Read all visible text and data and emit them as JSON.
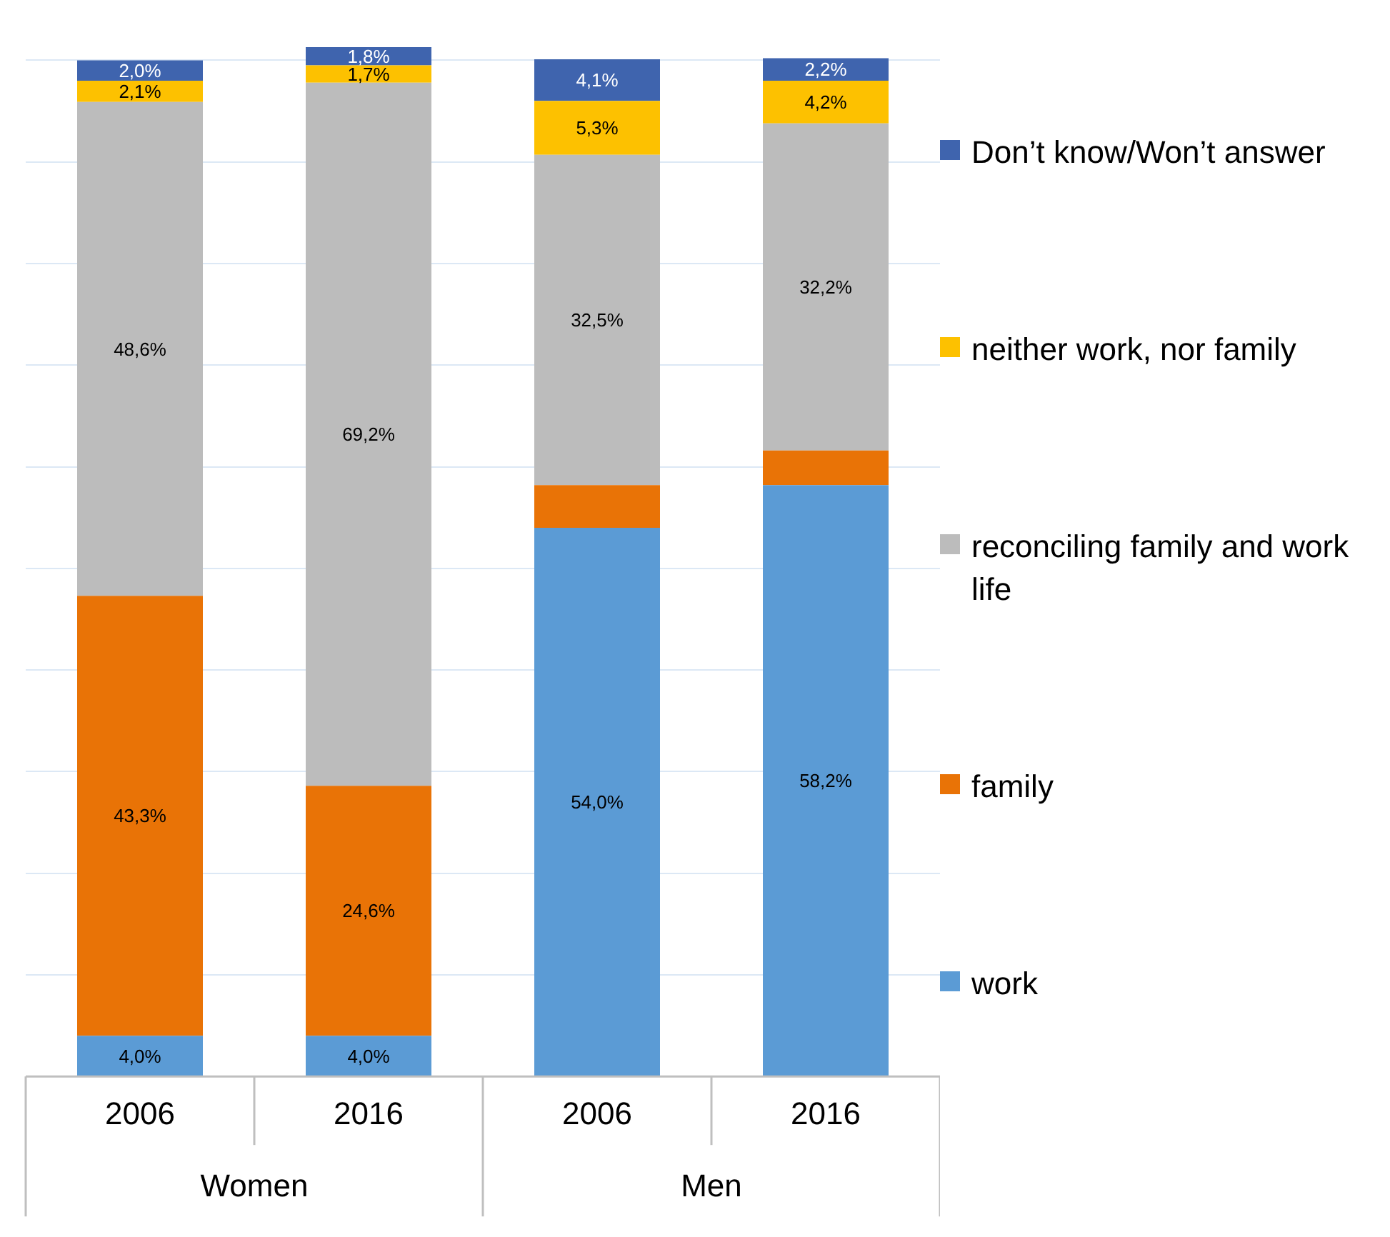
{
  "chart_data": {
    "type": "bar",
    "stacked": true,
    "categories": [
      "2006",
      "2016",
      "2006",
      "2016"
    ],
    "annotations": [
      "Women",
      "Men"
    ],
    "series": [
      {
        "name": "work",
        "color": "#5b9bd5",
        "values": [
          4.0,
          4.0,
          54.0,
          58.2
        ],
        "value_labels": [
          "4,0%",
          "4,0%",
          "54,0%",
          "58,2%"
        ]
      },
      {
        "name": "family",
        "color": "#e97306",
        "values": [
          43.3,
          24.6,
          4.2,
          3.4
        ],
        "value_labels": [
          "43,3%",
          "24,6%",
          null,
          null
        ]
      },
      {
        "name": "reconciling family and work life",
        "color": "#bcbcbc",
        "values": [
          48.6,
          69.2,
          32.5,
          32.2
        ],
        "value_labels": [
          "48,6%",
          "69,2%",
          "32,5%",
          "32,2%"
        ]
      },
      {
        "name": "neither work, nor family",
        "color": "#fdc100",
        "values": [
          2.1,
          1.7,
          5.3,
          4.2
        ],
        "value_labels": [
          "2,1%",
          "1,7%",
          "5,3%",
          "4,2%"
        ]
      },
      {
        "name": "Don’t know/Won’t answer",
        "color": "#3f64ae",
        "values": [
          2.0,
          1.8,
          4.1,
          2.2
        ],
        "value_labels": [
          "2,0%",
          "1,8%",
          "4,1%",
          "2,2%"
        ]
      }
    ],
    "ylim": [
      0,
      102
    ],
    "yticks": [
      {
        "value": 10,
        "label": null
      },
      {
        "value": 20,
        "label": null
      },
      {
        "value": 30,
        "label": null
      },
      {
        "value": 40,
        "label": null
      },
      {
        "value": 50,
        "label": null
      },
      {
        "value": 60,
        "label": null
      },
      {
        "value": 70,
        "label": null
      },
      {
        "value": 80,
        "label": null
      },
      {
        "value": 90,
        "label": null
      },
      {
        "value": 100,
        "label": null
      }
    ],
    "grid": "y",
    "legend": "right"
  }
}
